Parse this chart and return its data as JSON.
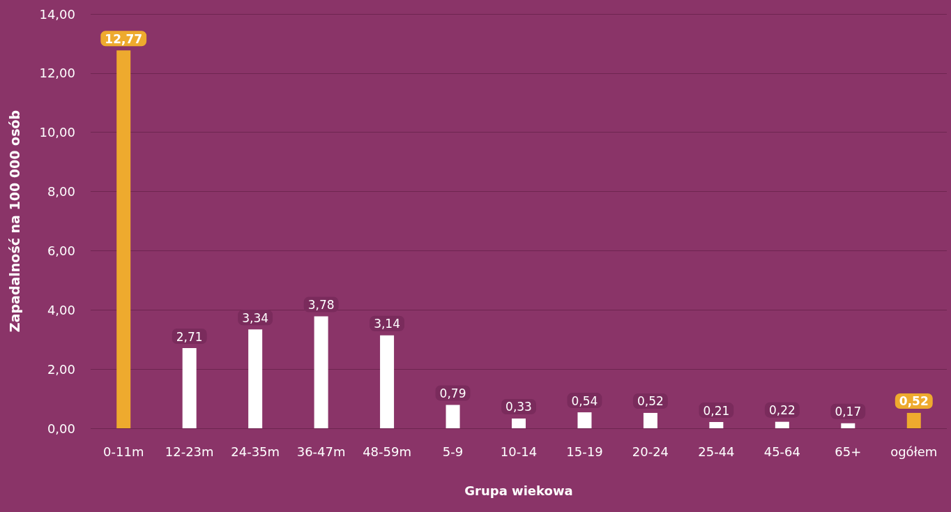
{
  "chart_data": {
    "type": "bar",
    "xlabel": "Grupa wiekowa",
    "ylabel": "Zapadalność na 100 000 osób",
    "categories": [
      "0-11m",
      "12-23m",
      "24-35m",
      "36-47m",
      "48-59m",
      "5-9",
      "10-14",
      "15-19",
      "20-24",
      "25-44",
      "45-64",
      "65+",
      "ogółem"
    ],
    "values": [
      12.77,
      2.71,
      3.34,
      3.78,
      3.14,
      0.79,
      0.33,
      0.54,
      0.52,
      0.21,
      0.22,
      0.17,
      0.52
    ],
    "value_labels": [
      "12,77",
      "2,71",
      "3,34",
      "3,78",
      "3,14",
      "0,79",
      "0,33",
      "0,54",
      "0,52",
      "0,21",
      "0,22",
      "0,17",
      "0,52"
    ],
    "colors": [
      "#eeaa2e",
      "#ffffff",
      "#ffffff",
      "#ffffff",
      "#ffffff",
      "#ffffff",
      "#ffffff",
      "#ffffff",
      "#ffffff",
      "#ffffff",
      "#ffffff",
      "#ffffff",
      "#eeaa2e"
    ],
    "ylim": [
      0,
      14
    ],
    "yticks": [
      {
        "value": 0,
        "label": "0,00"
      },
      {
        "value": 2,
        "label": "2,00"
      },
      {
        "value": 4,
        "label": "4,00"
      },
      {
        "value": 6,
        "label": "6,00"
      },
      {
        "value": 8,
        "label": "8,00"
      },
      {
        "value": 10,
        "label": "10,00"
      },
      {
        "value": 12,
        "label": "12,00"
      },
      {
        "value": 14,
        "label": "14,00"
      }
    ],
    "grid": "y"
  }
}
